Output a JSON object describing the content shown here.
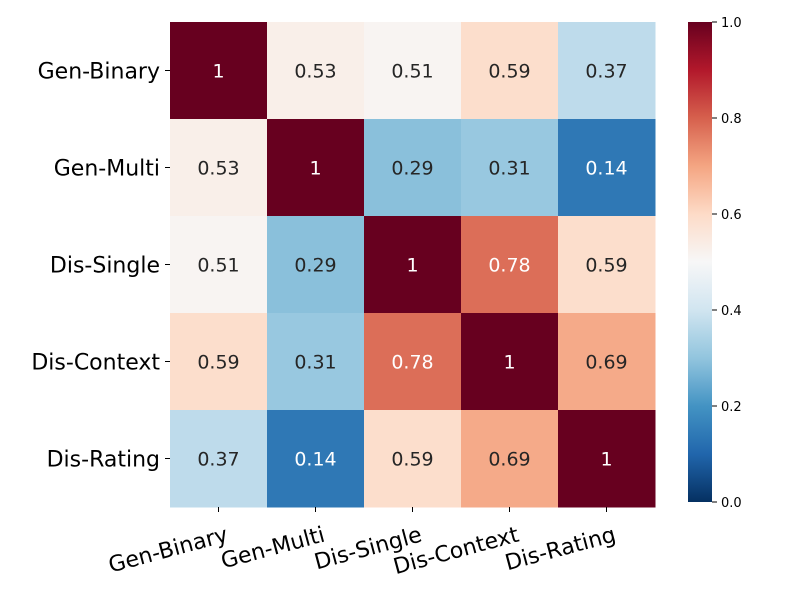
{
  "chart_data": {
    "type": "heatmap",
    "title": "",
    "xlabel": "",
    "ylabel": "",
    "row_labels": [
      "Gen-Binary",
      "Gen-Multi",
      "Dis-Single",
      "Dis-Context",
      "Dis-Rating"
    ],
    "col_labels": [
      "Gen-Binary",
      "Gen-Multi",
      "Dis-Single",
      "Dis-Context",
      "Dis-Rating"
    ],
    "values": [
      [
        1,
        0.53,
        0.51,
        0.59,
        0.37
      ],
      [
        0.53,
        1,
        0.29,
        0.31,
        0.14
      ],
      [
        0.51,
        0.29,
        1,
        0.78,
        0.59
      ],
      [
        0.59,
        0.31,
        0.78,
        1,
        0.69
      ],
      [
        0.37,
        0.14,
        0.59,
        0.69,
        1
      ]
    ],
    "value_labels": [
      [
        "1",
        "0.53",
        "0.51",
        "0.59",
        "0.37"
      ],
      [
        "0.53",
        "1",
        "0.29",
        "0.31",
        "0.14"
      ],
      [
        "0.51",
        "0.29",
        "1",
        "0.78",
        "0.59"
      ],
      [
        "0.59",
        "0.31",
        "0.78",
        "1",
        "0.69"
      ],
      [
        "0.37",
        "0.14",
        "0.59",
        "0.69",
        "1"
      ]
    ],
    "colorbar": {
      "range": [
        0.0,
        1.0
      ],
      "ticks": [
        0.0,
        0.2,
        0.4,
        0.6,
        0.8,
        1.0
      ],
      "tick_labels": [
        "0.0",
        "0.2",
        "0.4",
        "0.6",
        "0.8",
        "1.0"
      ],
      "colormap": "RdBu_r"
    },
    "colors": {
      "low": "#053061",
      "mid": "#f7f7f7",
      "high": "#67001f"
    }
  }
}
